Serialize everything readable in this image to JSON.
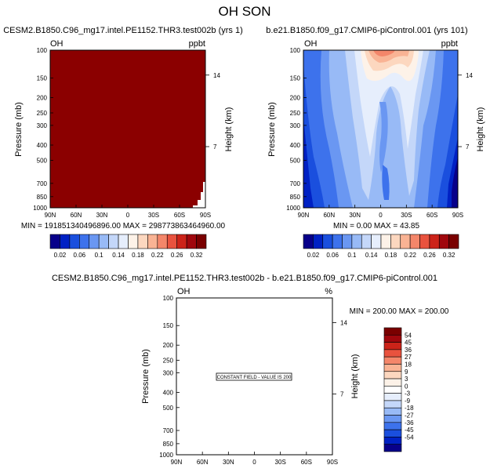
{
  "title": "OH SON",
  "colors": {
    "palette": [
      "#08008a",
      "#0021c4",
      "#1a4fde",
      "#3d72ec",
      "#6a97f2",
      "#98baf6",
      "#c4d7f9",
      "#e6eefc",
      "#fdf2e8",
      "#fcd7bf",
      "#f9b394",
      "#f4866a",
      "#e9523e",
      "#cc2319",
      "#a0070d",
      "#7a0000"
    ],
    "diff_palette": [
      "#08008a",
      "#0021c4",
      "#1a4fde",
      "#3d72ec",
      "#6a97f2",
      "#98baf6",
      "#c4d7f9",
      "#e6eefc",
      "#ffffff",
      "#fdf2e8",
      "#fcd7bf",
      "#f9b394",
      "#f4866a",
      "#e9523e",
      "#cc2319",
      "#a0070d",
      "#7a0000"
    ]
  },
  "chart_data": [
    {
      "type": "heatmap",
      "title": "CESM2.B1850.C96_mg17.intel.PE1152.THR3.test002b (yrs 1)",
      "left_label": "OH",
      "right_label": "ppbt",
      "ylabel": "Pressure (mb)",
      "y2label": "Height (km)",
      "xticks": [
        "90N",
        "60N",
        "30N",
        "0",
        "30S",
        "60S",
        "90S"
      ],
      "yticks": [
        "100",
        "150",
        "200",
        "250",
        "300",
        "400",
        "500",
        "700",
        "850",
        "1000"
      ],
      "y2ticks": [
        "14",
        "7"
      ],
      "stats": "MIN = 191851340496896.00   MAX = 298773863464960.00",
      "field": "constant saturated (above colorbar max)"
    },
    {
      "type": "heatmap",
      "title": "b.e21.B1850.f09_g17.CMIP6-piControl.001 (yrs 101)",
      "left_label": "OH",
      "right_label": "ppbt",
      "ylabel": "Pressure (mb)",
      "y2label": "Height (km)",
      "xticks": [
        "90N",
        "60N",
        "30N",
        "0",
        "30S",
        "60S",
        "90S"
      ],
      "yticks": [
        "100",
        "150",
        "200",
        "250",
        "300",
        "400",
        "500",
        "700",
        "850",
        "1000"
      ],
      "y2ticks": [
        "14",
        "7"
      ],
      "stats": "MIN =  0.00   MAX =  43.85",
      "min": 0.0,
      "max": 43.85
    },
    {
      "type": "heatmap",
      "title": "CESM2.B1850.C96_mg17.intel.PE1152.THR3.test002b - b.e21.B1850.f09_g17.CMIP6-piControl.001",
      "left_label": "OH",
      "right_label": "%",
      "ylabel": "Pressure (mb)",
      "y2label": "Height (km)",
      "xticks": [
        "90N",
        "60N",
        "30N",
        "0",
        "30S",
        "60S",
        "90S"
      ],
      "yticks": [
        "100",
        "150",
        "200",
        "250",
        "300",
        "400",
        "500",
        "700",
        "850",
        "1000"
      ],
      "y2ticks": [
        "14",
        "7"
      ],
      "stats": "MIN = 200.00   MAX = 200.00",
      "annotation": "CONSTANT FIELD - VALUE IS 200",
      "min": 200.0,
      "max": 200.0
    }
  ],
  "colorbar_top": {
    "labels": [
      "0.02",
      "0.06",
      "0.1",
      "0.14",
      "0.18",
      "0.22",
      "0.26",
      "0.32"
    ]
  },
  "colorbar_diff": {
    "labels": [
      "54",
      "45",
      "36",
      "27",
      "18",
      "9",
      "3",
      "0",
      "-3",
      "-9",
      "-18",
      "-27",
      "-36",
      "-45",
      "-54"
    ]
  }
}
